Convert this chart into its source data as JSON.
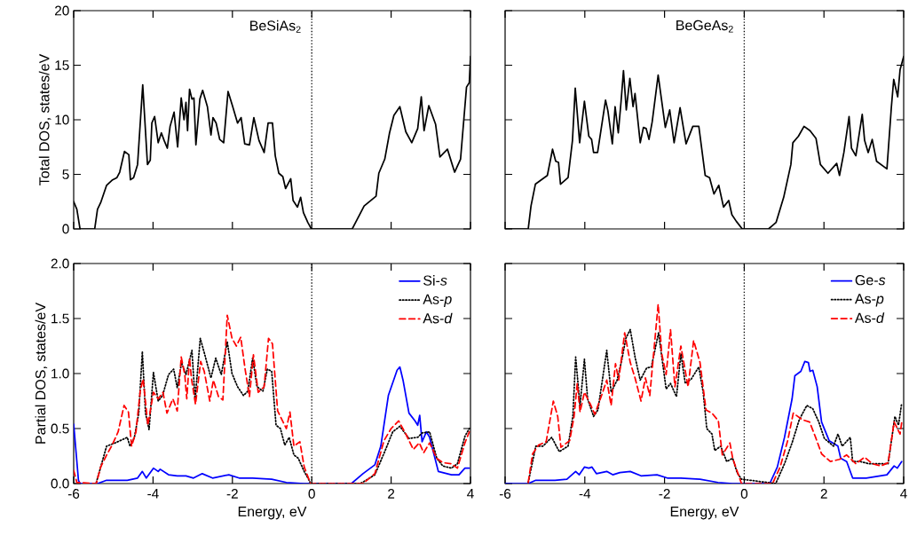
{
  "chart_data": [
    {
      "type": "line",
      "annotations": [
        "BeSiAs$_{2}$"
      ],
      "ylabel": "Total DOS, states/eV",
      "xlim": [
        -6,
        4
      ],
      "ylim": [
        0,
        20
      ],
      "xticks": [
        -6,
        -4,
        -2,
        0,
        2,
        4
      ],
      "yticks": [
        0,
        5,
        10,
        15,
        20
      ],
      "tick_labels": "y",
      "ref_lines": [
        {
          "axis": "x",
          "value": 0,
          "color": "#000000",
          "line_style": "dotted"
        }
      ],
      "series": [
        {
          "color": "#000000",
          "line_style": "solid",
          "x": [
            -6,
            -5.92,
            -5.84,
            -5.47,
            -5.4,
            -5.32,
            -5.17,
            -5.02,
            -4.91,
            -4.84,
            -4.72,
            -4.61,
            -4.57,
            -4.49,
            -4.39,
            -4.26,
            -4.14,
            -4.07,
            -4.03,
            -3.96,
            -3.87,
            -3.79,
            -3.72,
            -3.64,
            -3.57,
            -3.47,
            -3.38,
            -3.29,
            -3.22,
            -3.17,
            -3.13,
            -3.08,
            -3.02,
            -2.97,
            -2.92,
            -2.82,
            -2.75,
            -2.63,
            -2.54,
            -2.49,
            -2.41,
            -2.32,
            -2.22,
            -2.11,
            -2.0,
            -1.87,
            -1.78,
            -1.69,
            -1.57,
            -1.46,
            -1.33,
            -1.2,
            -1.1,
            -0.99,
            -0.92,
            -0.83,
            -0.73,
            -0.66,
            -0.53,
            -0.47,
            -0.36,
            -0.28,
            -0.21,
            -0.1,
            -0.01,
            1.02,
            1.32,
            1.62,
            1.69,
            1.84,
            1.96,
            2.07,
            2.22,
            2.37,
            2.52,
            2.67,
            2.76,
            2.83,
            2.95,
            3.12,
            3.23,
            3.42,
            3.6,
            3.75,
            3.9,
            3.97,
            4.0
          ],
          "values": [
            2.5,
            1.8,
            0,
            0,
            1.8,
            2.4,
            4.0,
            4.5,
            4.7,
            5.2,
            7.1,
            6.8,
            4.5,
            4.7,
            5.9,
            13.2,
            5.9,
            6.3,
            9.7,
            10.3,
            7.9,
            8.8,
            8.1,
            7.4,
            9.4,
            10.7,
            7.5,
            12.0,
            10.0,
            11.6,
            9.0,
            12.8,
            11.9,
            12.0,
            7.7,
            11.9,
            12.7,
            11.2,
            8.6,
            10.2,
            9.7,
            8.2,
            7.9,
            12.6,
            11.3,
            9.7,
            10.2,
            7.8,
            7.7,
            10.2,
            8.1,
            7.0,
            9.7,
            9.7,
            6.7,
            5.1,
            4.8,
            3.7,
            4.6,
            2.6,
            2.0,
            2.9,
            1.5,
            0.6,
            0,
            0,
            2.1,
            3.0,
            5.1,
            6.4,
            8.8,
            10.4,
            11.2,
            8.9,
            7.9,
            9.2,
            12.1,
            9.0,
            11.3,
            9.6,
            6.6,
            7.3,
            5.2,
            6.4,
            13.0,
            13.4,
            15.8
          ]
        }
      ]
    },
    {
      "type": "line",
      "annotations": [
        "BeGeAs$_{2}$"
      ],
      "xlim": [
        -6,
        4
      ],
      "ylim": [
        0,
        20
      ],
      "xticks": [
        -6,
        -4,
        -2,
        0,
        2,
        4
      ],
      "yticks": [
        0,
        5,
        10,
        15,
        20
      ],
      "tick_labels": false,
      "ref_lines": [
        {
          "axis": "x",
          "value": 0,
          "color": "#000000",
          "line_style": "dotted"
        }
      ],
      "series": [
        {
          "color": "#000000",
          "line_style": "solid",
          "x": [
            -6,
            -5.42,
            -5.35,
            -5.24,
            -5.09,
            -4.94,
            -4.81,
            -4.73,
            -4.66,
            -4.61,
            -4.42,
            -4.31,
            -4.24,
            -4.13,
            -4.01,
            -3.9,
            -3.83,
            -3.78,
            -3.68,
            -3.48,
            -3.42,
            -3.31,
            -3.24,
            -3.16,
            -3.09,
            -3.03,
            -2.96,
            -2.87,
            -2.79,
            -2.74,
            -2.61,
            -2.53,
            -2.46,
            -2.39,
            -2.31,
            -2.16,
            -1.98,
            -1.87,
            -1.76,
            -1.61,
            -1.46,
            -1.29,
            -1.14,
            -0.98,
            -0.87,
            -0.76,
            -0.64,
            -0.52,
            -0.39,
            -0.31,
            -0.2,
            -0.05,
            0.61,
            0.8,
            0.99,
            1.17,
            1.22,
            1.36,
            1.5,
            1.65,
            1.8,
            1.91,
            2.1,
            2.32,
            2.39,
            2.5,
            2.63,
            2.69,
            2.8,
            2.96,
            3.02,
            3.11,
            3.21,
            3.32,
            3.58,
            3.69,
            3.75,
            3.85,
            3.91,
            4.0
          ],
          "values": [
            0,
            0,
            2.1,
            4.1,
            4.5,
            4.9,
            7.3,
            6.2,
            6.1,
            4.1,
            4.7,
            8.1,
            12.9,
            7.9,
            11.7,
            8.5,
            8.2,
            7.0,
            7.0,
            11.8,
            10.8,
            7.8,
            11.2,
            8.8,
            11.7,
            14.5,
            10.9,
            13.8,
            11.2,
            12.4,
            7.9,
            9.3,
            9.2,
            8.2,
            9.8,
            14.1,
            9.3,
            10.9,
            7.9,
            11.1,
            7.8,
            9.4,
            9.4,
            4.9,
            4.7,
            3.2,
            4.0,
            2.0,
            2.6,
            1.3,
            0.7,
            0,
            0,
            0.6,
            2.9,
            5.9,
            7.9,
            8.5,
            9.4,
            9.0,
            8.3,
            5.9,
            5.1,
            6.0,
            4.9,
            7.0,
            10.3,
            7.4,
            6.7,
            10.5,
            8.1,
            7.0,
            8.2,
            6.2,
            5.5,
            11.1,
            13.7,
            12.1,
            14.6,
            15.8
          ]
        }
      ]
    },
    {
      "type": "line",
      "xlabel": "Energy, eV",
      "ylabel": "Partial DOS, states/eV",
      "xlim": [
        -6,
        4
      ],
      "ylim": [
        0,
        2
      ],
      "xticks": [
        -6,
        -4,
        -2,
        0,
        2,
        4
      ],
      "yticks": [
        {
          "value": 0,
          "label": "0.0"
        },
        0.5,
        {
          "value": 1,
          "label": "1.0"
        },
        1.5,
        {
          "value": 2,
          "label": "2.0"
        }
      ],
      "legend": "top right",
      "ref_lines": [
        {
          "axis": "x",
          "value": 0,
          "color": "#000000",
          "line_style": "dotted"
        }
      ],
      "series": [
        {
          "name": "Si-*s*",
          "color": "#0000ff",
          "line_style": "solid",
          "x": [
            -6,
            -5.88,
            -5.84,
            -5.4,
            -5.17,
            -4.65,
            -4.39,
            -4.27,
            -4.17,
            -3.99,
            -3.87,
            -3.82,
            -3.61,
            -3.39,
            -3.17,
            -2.98,
            -2.76,
            -2.5,
            -2.09,
            -1.83,
            -1.49,
            -1.01,
            -0.64,
            -0.19,
            1.0,
            1.29,
            1.59,
            1.74,
            1.93,
            2.15,
            2.22,
            2.3,
            2.45,
            2.6,
            2.67,
            2.72,
            2.78,
            2.89,
            2.97,
            3.19,
            3.52,
            3.71,
            3.86,
            3.97
          ],
          "values": [
            0.54,
            0.03,
            0,
            0,
            0.03,
            0.03,
            0.05,
            0.11,
            0.05,
            0.14,
            0.11,
            0.13,
            0.08,
            0.07,
            0.07,
            0.05,
            0.09,
            0.05,
            0.08,
            0.05,
            0.05,
            0.04,
            0.01,
            0,
            0,
            0.09,
            0.17,
            0.34,
            0.8,
            1.03,
            1.06,
            0.94,
            0.64,
            0.57,
            0.53,
            0.62,
            0.38,
            0.47,
            0.42,
            0.11,
            0.08,
            0.08,
            0.14,
            0.14
          ]
        },
        {
          "name": "As-*p*",
          "color": "#000000",
          "line_style": "dotted",
          "x": [
            -5.43,
            -5.17,
            -4.95,
            -4.65,
            -4.58,
            -4.47,
            -4.36,
            -4.27,
            -4.19,
            -4.1,
            -3.99,
            -3.87,
            -3.76,
            -3.61,
            -3.48,
            -3.39,
            -3.28,
            -3.17,
            -3.02,
            -2.94,
            -2.81,
            -2.71,
            -2.54,
            -2.42,
            -2.28,
            -2.13,
            -2.01,
            -1.87,
            -1.72,
            -1.61,
            -1.49,
            -1.38,
            -1.23,
            -1.12,
            -1.01,
            -0.9,
            -0.79,
            -0.68,
            -0.57,
            -0.45,
            -0.34,
            -0.19,
            -0.08,
            -0.03,
            1.22,
            1.37,
            1.59,
            1.85,
            2.04,
            2.22,
            2.45,
            2.67,
            2.78,
            2.97,
            3.15,
            3.3,
            3.52,
            3.67,
            3.86,
            3.97
          ],
          "values": [
            0.01,
            0.34,
            0.37,
            0.42,
            0.34,
            0.42,
            0.64,
            1.2,
            0.64,
            0.49,
            1.01,
            0.75,
            0.8,
            0.99,
            1.04,
            0.87,
            1.1,
            0.99,
            1.21,
            0.76,
            1.32,
            1.19,
            0.96,
            1.14,
            0.99,
            1.29,
            1.0,
            0.88,
            0.8,
            0.84,
            1.14,
            0.88,
            0.84,
            1.04,
            1.02,
            0.53,
            0.5,
            0.35,
            0.42,
            0.26,
            0.23,
            0.11,
            0.04,
            0,
            0,
            0.03,
            0.08,
            0.3,
            0.47,
            0.52,
            0.41,
            0.42,
            0.46,
            0.47,
            0.23,
            0.16,
            0.14,
            0.18,
            0.43,
            0.5
          ]
        },
        {
          "name": "As-*d*",
          "color": "#ff0000",
          "line_style": "dashed",
          "x": [
            -6,
            -5.92,
            -5.43,
            -5.32,
            -5.17,
            -5.03,
            -4.88,
            -4.73,
            -4.62,
            -4.54,
            -4.43,
            -4.32,
            -4.25,
            -4.13,
            -3.99,
            -3.87,
            -3.75,
            -3.65,
            -3.5,
            -3.39,
            -3.29,
            -3.2,
            -3.15,
            -3.08,
            -3.03,
            -2.93,
            -2.8,
            -2.71,
            -2.57,
            -2.48,
            -2.35,
            -2.24,
            -2.13,
            -2.01,
            -1.9,
            -1.79,
            -1.68,
            -1.57,
            -1.47,
            -1.35,
            -1.2,
            -1.09,
            -0.99,
            -0.86,
            -0.64,
            -0.55,
            -0.45,
            -0.3,
            -0.19,
            -0.03,
            1.29,
            1.59,
            1.82,
            2.0,
            2.19,
            2.37,
            2.56,
            2.71,
            2.82,
            2.97,
            3.15,
            3.3,
            3.52,
            3.67,
            3.86,
            3.97
          ],
          "values": [
            0.12,
            0.01,
            0,
            0.15,
            0.26,
            0.35,
            0.47,
            0.71,
            0.65,
            0.34,
            0.47,
            0.85,
            0.95,
            0.53,
            0.83,
            0.77,
            0.83,
            0.64,
            0.77,
            0.66,
            1.15,
            0.99,
            0.77,
            1.14,
            0.95,
            0.72,
            1.11,
            1.02,
            0.75,
            0.94,
            0.79,
            0.76,
            1.53,
            1.32,
            1.25,
            1.33,
            1.04,
            0.79,
            1.17,
            0.83,
            0.88,
            1.32,
            1.27,
            0.66,
            0.5,
            0.65,
            0.34,
            0.38,
            0.15,
            0,
            0,
            0.09,
            0.39,
            0.5,
            0.57,
            0.45,
            0.31,
            0.37,
            0.28,
            0.37,
            0.23,
            0.19,
            0.18,
            0.14,
            0.37,
            0.47
          ]
        }
      ]
    },
    {
      "type": "line",
      "xlabel": "Energy, eV",
      "xlim": [
        -6,
        4
      ],
      "ylim": [
        0,
        2
      ],
      "xticks": [
        -6,
        -4,
        -2,
        0,
        2,
        4
      ],
      "yticks": [
        0,
        0.5,
        1,
        1.5,
        2
      ],
      "tick_labels": "x",
      "legend": "top right",
      "ref_lines": [
        {
          "axis": "x",
          "value": 0,
          "color": "#000000",
          "line_style": "dotted"
        }
      ],
      "series": [
        {
          "name": "Ge-*s*",
          "color": "#0000ff",
          "line_style": "solid",
          "x": [
            -6,
            -5.42,
            -5.23,
            -4.75,
            -4.45,
            -4.23,
            -4.14,
            -4.01,
            -3.9,
            -3.82,
            -3.71,
            -3.45,
            -3.3,
            -3.12,
            -2.86,
            -2.59,
            -2.19,
            -1.93,
            -1.59,
            -1.11,
            -0.66,
            -0.29,
            0.64,
            0.83,
            1.01,
            1.2,
            1.27,
            1.42,
            1.52,
            1.61,
            1.65,
            1.72,
            1.83,
            1.94,
            2.13,
            2.35,
            2.42,
            2.57,
            2.72,
            3.06,
            3.58,
            3.76,
            3.84,
            3.95
          ],
          "values": [
            0,
            0,
            0.03,
            0.03,
            0.04,
            0.11,
            0.08,
            0.15,
            0.14,
            0.15,
            0.09,
            0.11,
            0.08,
            0.1,
            0.11,
            0.07,
            0.08,
            0.05,
            0.05,
            0.04,
            0.01,
            0,
            0,
            0.15,
            0.42,
            0.77,
            0.98,
            1.02,
            1.11,
            1.1,
            1.02,
            1.03,
            0.88,
            0.56,
            0.39,
            0.34,
            0.23,
            0.2,
            0.05,
            0.05,
            0.08,
            0.16,
            0.14,
            0.2
          ]
        },
        {
          "name": "As-*p*",
          "color": "#000000",
          "line_style": "dotted",
          "x": [
            -5.42,
            -5.23,
            -5.05,
            -4.83,
            -4.64,
            -4.42,
            -4.3,
            -4.23,
            -4.12,
            -4.01,
            -3.93,
            -3.78,
            -3.67,
            -3.45,
            -3.34,
            -3.19,
            -3.08,
            -2.97,
            -2.86,
            -2.74,
            -2.61,
            -2.45,
            -2.33,
            -2.15,
            -1.96,
            -1.85,
            -1.7,
            -1.59,
            -1.48,
            -1.33,
            -1.14,
            -1.03,
            -0.94,
            -0.81,
            -0.74,
            -0.59,
            -0.44,
            -0.29,
            -0.18,
            -0.07,
            0.79,
            1.01,
            1.2,
            1.38,
            1.57,
            1.72,
            1.87,
            2.01,
            2.24,
            2.35,
            2.46,
            2.66,
            2.72,
            2.91,
            3.13,
            3.43,
            3.61,
            3.78,
            3.87,
            3.95
          ],
          "values": [
            0.01,
            0.34,
            0.34,
            0.42,
            0.29,
            0.34,
            0.61,
            1.15,
            0.71,
            1.13,
            0.77,
            0.61,
            0.67,
            1.21,
            0.83,
            0.94,
            1.11,
            1.32,
            1.4,
            1.15,
            0.94,
            1.05,
            1.06,
            1.37,
            0.86,
            0.91,
            0.79,
            1.18,
            0.91,
            0.95,
            1.06,
            0.83,
            0.5,
            0.45,
            0.3,
            0.34,
            0.2,
            0.23,
            0.1,
            0.04,
            0,
            0.18,
            0.37,
            0.58,
            0.71,
            0.68,
            0.56,
            0.41,
            0.34,
            0.45,
            0.34,
            0.42,
            0.2,
            0.2,
            0.18,
            0.18,
            0.18,
            0.61,
            0.53,
            0.73
          ]
        },
        {
          "name": "As-*d*",
          "color": "#ff0000",
          "line_style": "dashed",
          "x": [
            -5.42,
            -5.31,
            -5.16,
            -4.97,
            -4.79,
            -4.68,
            -4.6,
            -4.38,
            -4.27,
            -4.19,
            -4.12,
            -4.01,
            -3.86,
            -3.75,
            -3.58,
            -3.45,
            -3.34,
            -3.23,
            -3.15,
            -3.0,
            -2.86,
            -2.74,
            -2.59,
            -2.48,
            -2.37,
            -2.16,
            -2.07,
            -1.96,
            -1.85,
            -1.74,
            -1.59,
            -1.41,
            -1.27,
            -1.11,
            -0.96,
            -0.81,
            -0.65,
            -0.55,
            -0.36,
            -0.29,
            -0.07,
            0.71,
            0.9,
            1.09,
            1.23,
            1.46,
            1.64,
            1.79,
            1.94,
            2.16,
            2.39,
            2.57,
            2.8,
            3.02,
            3.21,
            3.43,
            3.61,
            3.76,
            3.91,
            3.96
          ],
          "values": [
            0.01,
            0.27,
            0.35,
            0.38,
            0.75,
            0.61,
            0.33,
            0.39,
            0.61,
            0.91,
            0.65,
            0.83,
            0.72,
            0.63,
            0.8,
            0.94,
            0.71,
            1.09,
            0.94,
            1.37,
            1.1,
            0.96,
            0.75,
            0.96,
            0.8,
            1.63,
            1.18,
            0.99,
            1.4,
            0.88,
            1.25,
            0.88,
            1.3,
            1.1,
            0.67,
            0.64,
            0.57,
            0.26,
            0.37,
            0.23,
            0,
            0,
            0.15,
            0.39,
            0.64,
            0.58,
            0.56,
            0.42,
            0.27,
            0.2,
            0.22,
            0.26,
            0.18,
            0.24,
            0.18,
            0.16,
            0.19,
            0.56,
            0.45,
            0.58
          ]
        }
      ]
    }
  ]
}
